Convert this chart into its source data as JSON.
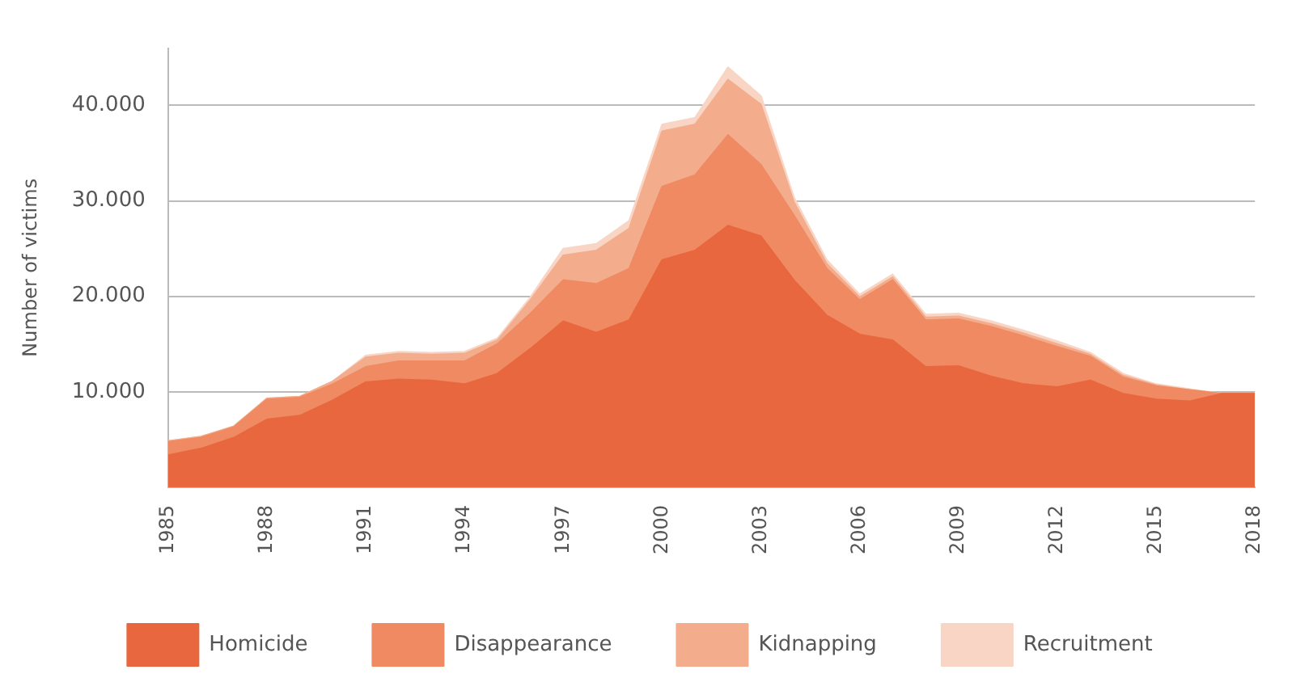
{
  "chart_data": {
    "type": "area",
    "stacked": true,
    "ylabel": "Number of victims",
    "x": [
      1985,
      1986,
      1987,
      1988,
      1989,
      1990,
      1991,
      1992,
      1993,
      1994,
      1995,
      1996,
      1997,
      1998,
      1999,
      2000,
      2001,
      2002,
      2003,
      2004,
      2005,
      2006,
      2007,
      2008,
      2009,
      2010,
      2011,
      2012,
      2013,
      2014,
      2015,
      2016,
      2017,
      2018
    ],
    "series": [
      {
        "name": "Homicide",
        "color": "#e8673e",
        "values": [
          3350,
          4050,
          5200,
          7100,
          7500,
          9100,
          11000,
          11300,
          11200,
          10800,
          11900,
          14500,
          17400,
          16200,
          17500,
          23800,
          24800,
          27400,
          26300,
          21700,
          18000,
          16000,
          15400,
          12600,
          12700,
          11600,
          10800,
          10500,
          11200,
          9800,
          9200,
          9000,
          9800,
          9800
        ]
      },
      {
        "name": "Disappearance",
        "color": "#ef8a63",
        "values": [
          1400,
          1150,
          1100,
          2100,
          1900,
          1700,
          1600,
          1900,
          2000,
          2400,
          3100,
          3700,
          4300,
          5100,
          5400,
          7700,
          7900,
          9500,
          7500,
          6800,
          4900,
          3600,
          6300,
          4900,
          4900,
          5200,
          5000,
          4200,
          2500,
          1700,
          1400,
          1200,
          0,
          0
        ]
      },
      {
        "name": "Kidnapping",
        "color": "#f3ad8c",
        "values": [
          100,
          100,
          100,
          100,
          100,
          300,
          1000,
          800,
          700,
          800,
          400,
          1400,
          2600,
          3500,
          4200,
          5800,
          5300,
          5800,
          6300,
          1400,
          500,
          300,
          300,
          300,
          300,
          300,
          300,
          300,
          200,
          200,
          100,
          0,
          0,
          0
        ]
      },
      {
        "name": "Recruitment",
        "color": "#f8d5c4",
        "values": [
          0,
          0,
          0,
          0,
          0,
          0,
          200,
          200,
          200,
          200,
          200,
          300,
          700,
          700,
          800,
          700,
          700,
          1300,
          900,
          500,
          400,
          300,
          300,
          300,
          300,
          300,
          300,
          300,
          200,
          200,
          100,
          100,
          0,
          0
        ]
      }
    ],
    "xlim": [
      1985,
      2018
    ],
    "xticks": [
      1985,
      1988,
      1991,
      1994,
      1997,
      2000,
      2003,
      2006,
      2009,
      2012,
      2015,
      2018
    ],
    "ylim": [
      0,
      46000
    ],
    "yticks": [
      {
        "value": 10000,
        "label": "10.000"
      },
      {
        "value": 20000,
        "label": "20.000"
      },
      {
        "value": 30000,
        "label": "30.000"
      },
      {
        "value": 40000,
        "label": "40.000"
      }
    ],
    "grid": "y",
    "legend": "bottom"
  }
}
